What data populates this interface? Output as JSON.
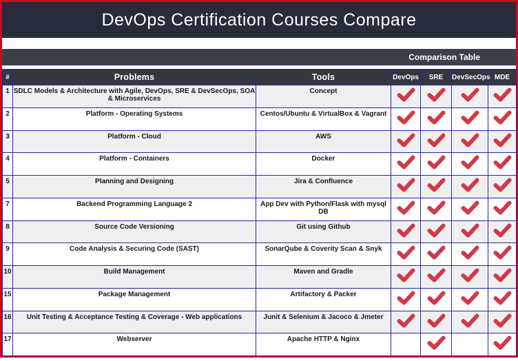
{
  "title": "DevOps Certification Courses Compare",
  "subheader": {
    "label": "Comparison Table"
  },
  "table": {
    "header": {
      "num": "#",
      "problems": "Problems",
      "tools": "Tools",
      "certs": [
        "DevOps",
        "SRE",
        "DevSecOps",
        "MDE"
      ]
    },
    "rows": [
      {
        "num": "1",
        "problem": "SDLC Models & Architecture with Agile, DevOps, SRE & DevSecOps, SOA & Microservices",
        "tool": "Concept",
        "checks": [
          true,
          true,
          true,
          true
        ]
      },
      {
        "num": "2",
        "problem": "Platform - Operating Systems",
        "tool": "Centos/Ubuntu & VirtualBox & Vagrant",
        "checks": [
          true,
          true,
          true,
          true
        ]
      },
      {
        "num": "3",
        "problem": "Platform - Cloud",
        "tool": "AWS",
        "checks": [
          true,
          true,
          true,
          true
        ]
      },
      {
        "num": "4",
        "problem": "Platform - Containers",
        "tool": "Docker",
        "checks": [
          true,
          true,
          true,
          true
        ]
      },
      {
        "num": "5",
        "problem": "Planning and Designing",
        "tool": "Jira & Confluence",
        "checks": [
          true,
          true,
          true,
          true
        ]
      },
      {
        "num": "7",
        "problem": "Backend Programming Language 2",
        "tool": "App Dev with Python/Flask with mysql DB",
        "checks": [
          true,
          true,
          true,
          true
        ]
      },
      {
        "num": "8",
        "problem": "Source Code Versioning",
        "tool": "Git using Github",
        "checks": [
          true,
          true,
          true,
          true
        ]
      },
      {
        "num": "9",
        "problem": "Code Analysis & Securing Code (SAST)",
        "tool": "SonarQube & Coverity Scan & Snyk",
        "checks": [
          true,
          true,
          true,
          true
        ]
      },
      {
        "num": "10",
        "problem": "Build Management",
        "tool": "Maven and Gradle",
        "checks": [
          true,
          true,
          true,
          true
        ]
      },
      {
        "num": "15",
        "problem": "Package Management",
        "tool": "Artifactory & Packer",
        "checks": [
          true,
          true,
          true,
          true
        ]
      },
      {
        "num": "16",
        "problem": "Unit Testing & Acceptance Testing & Coverage - Web applications",
        "tool": "Junit & Selenium & Jacoco & Jmeter",
        "checks": [
          true,
          true,
          true,
          true
        ]
      },
      {
        "num": "17",
        "problem": "Webserver",
        "tool": "Apache HTTP & Nginx",
        "checks": [
          false,
          true,
          false,
          true
        ]
      }
    ]
  },
  "colors": {
    "frame_border_red": "#c60d1d",
    "title_bar_navy": "#262c3a",
    "bar_dark": "#3b4048",
    "header_dark": "#33383f",
    "cell_border_blue": "#2525ad",
    "row_alt_gray": "#efeff1",
    "check_red": "#d23947"
  }
}
